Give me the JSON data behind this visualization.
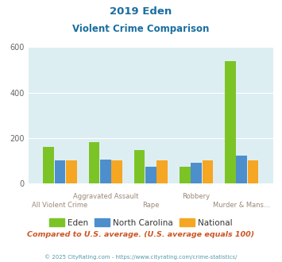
{
  "title_line1": "2019 Eden",
  "title_line2": "Violent Crime Comparison",
  "categories_high": [
    "Aggravated Assault",
    "Robbery"
  ],
  "categories_low": [
    "All Violent Crime",
    "Rape",
    "Murder & Mans..."
  ],
  "categories_all": [
    "All Violent Crime",
    "Aggravated Assault",
    "Rape",
    "Robbery",
    "Murder & Mans..."
  ],
  "eden_values": [
    160,
    182,
    148,
    72,
    540
  ],
  "nc_values": [
    100,
    105,
    72,
    92,
    122
  ],
  "national_values": [
    100,
    100,
    100,
    100,
    100
  ],
  "eden_color": "#7cc426",
  "nc_color": "#4d8fcc",
  "national_color": "#f5a623",
  "bg_color": "#ddeef3",
  "ylim": [
    0,
    600
  ],
  "yticks": [
    0,
    200,
    400,
    600
  ],
  "footer_text": "© 2025 CityRating.com - https://www.cityrating.com/crime-statistics/",
  "comparison_text": "Compared to U.S. average. (U.S. average equals 100)",
  "legend_labels": [
    "Eden",
    "North Carolina",
    "National"
  ],
  "title_color": "#1a6ea0",
  "xlabel_color": "#9a8878",
  "comparison_color": "#cc5522",
  "footer_color": "#5599aa"
}
